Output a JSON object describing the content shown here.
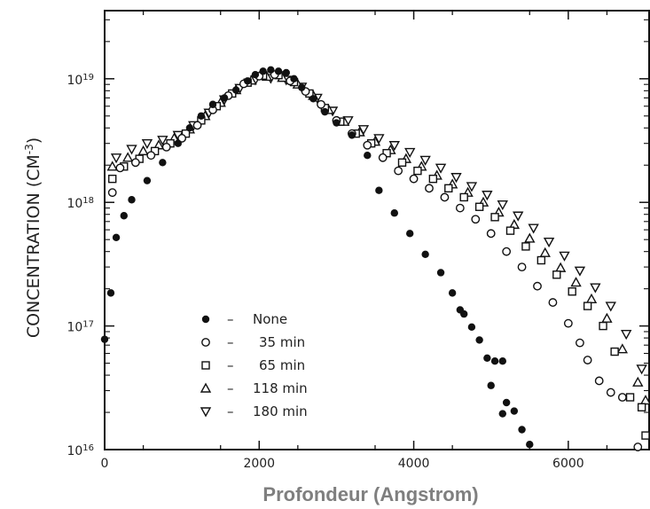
{
  "chart_data": {
    "type": "scatter",
    "title": "",
    "xlabel": "Profondeur (Angstrom)",
    "ylabel": "CONCENTRATION (CM",
    "ylabel_exponent": "-3",
    "ylabel_close": ")",
    "xlim": [
      0,
      7000
    ],
    "ylim": [
      1e+16,
      2e+19
    ],
    "yscale": "log",
    "grid": false,
    "legend_position": "bottom-left",
    "x_ticks": [
      {
        "value": 0,
        "label": "0"
      },
      {
        "value": 2000,
        "label": "2000"
      },
      {
        "value": 4000,
        "label": "4000"
      },
      {
        "value": 6000,
        "label": "6000"
      }
    ],
    "y_ticks": [
      {
        "value": 1e+19,
        "base": "10",
        "exp": "19"
      },
      {
        "value": 1e+18,
        "base": "10",
        "exp": "18"
      },
      {
        "value": 1e+17,
        "base": "10",
        "exp": "17"
      },
      {
        "value": 1e+16,
        "base": "10",
        "exp": "16"
      }
    ],
    "series": [
      {
        "name": "None",
        "dash": "–",
        "marker": "filled-circle",
        "points": [
          [
            0,
            7.8e+16
          ],
          [
            80,
            1.85e+17
          ],
          [
            150,
            5.2e+17
          ],
          [
            250,
            7.8e+17
          ],
          [
            350,
            1.05e+18
          ],
          [
            550,
            1.5e+18
          ],
          [
            750,
            2.1e+18
          ],
          [
            950,
            3e+18
          ],
          [
            1100,
            4e+18
          ],
          [
            1250,
            5e+18
          ],
          [
            1400,
            6.2e+18
          ],
          [
            1550,
            7e+18
          ],
          [
            1700,
            8.1e+18
          ],
          [
            1850,
            9.6e+18
          ],
          [
            1950,
            1.08e+19
          ],
          [
            2050,
            1.15e+19
          ],
          [
            2150,
            1.18e+19
          ],
          [
            2250,
            1.15e+19
          ],
          [
            2350,
            1.12e+19
          ],
          [
            2450,
            1e+19
          ],
          [
            2550,
            8.5e+18
          ],
          [
            2700,
            6.9e+18
          ],
          [
            2850,
            5.4e+18
          ],
          [
            3000,
            4.4e+18
          ],
          [
            3200,
            3.5e+18
          ],
          [
            3400,
            2.4e+18
          ],
          [
            3550,
            1.25e+18
          ],
          [
            3750,
            8.2e+17
          ],
          [
            3950,
            5.6e+17
          ],
          [
            4150,
            3.8e+17
          ],
          [
            4350,
            2.7e+17
          ],
          [
            4500,
            1.85e+17
          ],
          [
            4600,
            1.35e+17
          ],
          [
            4650,
            1.25e+17
          ],
          [
            4750,
            9.8e+16
          ],
          [
            4850,
            7.7e+16
          ],
          [
            4950,
            5.5e+16
          ],
          [
            5050,
            5.2e+16
          ],
          [
            5150,
            5.2e+16
          ],
          [
            5000,
            3.3e+16
          ],
          [
            5200,
            2.4e+16
          ],
          [
            5300,
            2.05e+16
          ],
          [
            5150,
            1.95e+16
          ],
          [
            5400,
            1.45e+16
          ],
          [
            5500,
            1.1e+16
          ]
        ]
      },
      {
        "name": "35 min",
        "dash": "–",
        "marker": "open-circle",
        "points": [
          [
            100,
            1.2e+18
          ],
          [
            200,
            1.9e+18
          ],
          [
            400,
            2.1e+18
          ],
          [
            600,
            2.4e+18
          ],
          [
            800,
            2.8e+18
          ],
          [
            1000,
            3.3e+18
          ],
          [
            1200,
            4.2e+18
          ],
          [
            1400,
            5.6e+18
          ],
          [
            1600,
            7.3e+18
          ],
          [
            1800,
            9.1e+18
          ],
          [
            2000,
            1.05e+19
          ],
          [
            2200,
            1.08e+19
          ],
          [
            2400,
            9.6e+18
          ],
          [
            2600,
            7.9e+18
          ],
          [
            2800,
            6.2e+18
          ],
          [
            3000,
            4.6e+18
          ],
          [
            3200,
            3.6e+18
          ],
          [
            3400,
            2.9e+18
          ],
          [
            3600,
            2.3e+18
          ],
          [
            3800,
            1.8e+18
          ],
          [
            4000,
            1.55e+18
          ],
          [
            4200,
            1.3e+18
          ],
          [
            4400,
            1.1e+18
          ],
          [
            4600,
            9e+17
          ],
          [
            4800,
            7.3e+17
          ],
          [
            5000,
            5.6e+17
          ],
          [
            5200,
            4e+17
          ],
          [
            5400,
            3e+17
          ],
          [
            5600,
            2.1e+17
          ],
          [
            5800,
            1.55e+17
          ],
          [
            6000,
            1.05e+17
          ],
          [
            6150,
            7.3e+16
          ],
          [
            6250,
            5.3e+16
          ],
          [
            6400,
            3.6e+16
          ],
          [
            6550,
            2.9e+16
          ],
          [
            6700,
            2.65e+16
          ],
          [
            6900,
            1.05e+16
          ]
        ]
      },
      {
        "name": "65 min",
        "dash": "–",
        "marker": "open-square",
        "points": [
          [
            100,
            1.55e+18
          ],
          [
            250,
            1.95e+18
          ],
          [
            450,
            2.25e+18
          ],
          [
            650,
            2.6e+18
          ],
          [
            850,
            3e+18
          ],
          [
            1050,
            3.6e+18
          ],
          [
            1250,
            4.6e+18
          ],
          [
            1450,
            6e+18
          ],
          [
            1650,
            7.6e+18
          ],
          [
            1850,
            9.3e+18
          ],
          [
            2050,
            1.06e+19
          ],
          [
            2250,
            1.07e+19
          ],
          [
            2450,
            9.4e+18
          ],
          [
            2650,
            7.6e+18
          ],
          [
            2850,
            5.8e+18
          ],
          [
            3050,
            4.5e+18
          ],
          [
            3250,
            3.6e+18
          ],
          [
            3450,
            3e+18
          ],
          [
            3650,
            2.5e+18
          ],
          [
            3850,
            2.1e+18
          ],
          [
            4050,
            1.8e+18
          ],
          [
            4250,
            1.55e+18
          ],
          [
            4450,
            1.3e+18
          ],
          [
            4650,
            1.1e+18
          ],
          [
            4850,
            9.2e+17
          ],
          [
            5050,
            7.6e+17
          ],
          [
            5250,
            5.9e+17
          ],
          [
            5450,
            4.4e+17
          ],
          [
            5650,
            3.4e+17
          ],
          [
            5850,
            2.6e+17
          ],
          [
            6050,
            1.9e+17
          ],
          [
            6250,
            1.45e+17
          ],
          [
            6450,
            1e+17
          ],
          [
            6600,
            6.2e+16
          ],
          [
            6800,
            2.65e+16
          ],
          [
            6950,
            2.2e+16
          ],
          [
            7000,
            1.3e+16
          ]
        ]
      },
      {
        "name": "118 min",
        "dash": "–",
        "marker": "open-triangle-up",
        "points": [
          [
            100,
            1.95e+18
          ],
          [
            300,
            2.3e+18
          ],
          [
            500,
            2.6e+18
          ],
          [
            700,
            2.9e+18
          ],
          [
            900,
            3.3e+18
          ],
          [
            1100,
            3.9e+18
          ],
          [
            1300,
            5e+18
          ],
          [
            1500,
            6.4e+18
          ],
          [
            1700,
            8.1e+18
          ],
          [
            1900,
            9.7e+18
          ],
          [
            2100,
            1.04e+19
          ],
          [
            2300,
            1.02e+19
          ],
          [
            2500,
            9e+18
          ],
          [
            2700,
            7.3e+18
          ],
          [
            2900,
            5.6e+18
          ],
          [
            3100,
            4.5e+18
          ],
          [
            3300,
            3.7e+18
          ],
          [
            3500,
            3.1e+18
          ],
          [
            3700,
            2.65e+18
          ],
          [
            3900,
            2.25e+18
          ],
          [
            4100,
            1.95e+18
          ],
          [
            4300,
            1.65e+18
          ],
          [
            4500,
            1.4e+18
          ],
          [
            4700,
            1.2e+18
          ],
          [
            4900,
            1e+18
          ],
          [
            5100,
            8.3e+17
          ],
          [
            5300,
            6.6e+17
          ],
          [
            5500,
            5.1e+17
          ],
          [
            5700,
            3.9e+17
          ],
          [
            5900,
            2.95e+17
          ],
          [
            6100,
            2.25e+17
          ],
          [
            6300,
            1.65e+17
          ],
          [
            6500,
            1.15e+17
          ],
          [
            6700,
            6.5e+16
          ],
          [
            6900,
            3.5e+16
          ],
          [
            7000,
            2.5e+16
          ]
        ]
      },
      {
        "name": "180 min",
        "dash": "–",
        "marker": "open-triangle-down",
        "points": [
          [
            150,
            2.3e+18
          ],
          [
            350,
            2.7e+18
          ],
          [
            550,
            3e+18
          ],
          [
            750,
            3.2e+18
          ],
          [
            950,
            3.5e+18
          ],
          [
            1150,
            4.2e+18
          ],
          [
            1350,
            5.3e+18
          ],
          [
            1550,
            6.8e+18
          ],
          [
            1750,
            8.4e+18
          ],
          [
            1950,
            9.8e+18
          ],
          [
            2150,
            1.01e+19
          ],
          [
            2350,
            9.8e+18
          ],
          [
            2550,
            8.6e+18
          ],
          [
            2750,
            7e+18
          ],
          [
            2950,
            5.5e+18
          ],
          [
            3150,
            4.6e+18
          ],
          [
            3350,
            3.9e+18
          ],
          [
            3550,
            3.3e+18
          ],
          [
            3750,
            2.9e+18
          ],
          [
            3950,
            2.55e+18
          ],
          [
            4150,
            2.2e+18
          ],
          [
            4350,
            1.9e+18
          ],
          [
            4550,
            1.6e+18
          ],
          [
            4750,
            1.35e+18
          ],
          [
            4950,
            1.15e+18
          ],
          [
            5150,
            9.6e+17
          ],
          [
            5350,
            7.8e+17
          ],
          [
            5550,
            6.2e+17
          ],
          [
            5750,
            4.8e+17
          ],
          [
            5950,
            3.7e+17
          ],
          [
            6150,
            2.8e+17
          ],
          [
            6350,
            2.05e+17
          ],
          [
            6550,
            1.45e+17
          ],
          [
            6750,
            8.6e+16
          ],
          [
            6950,
            4.5e+16
          ]
        ]
      }
    ]
  }
}
